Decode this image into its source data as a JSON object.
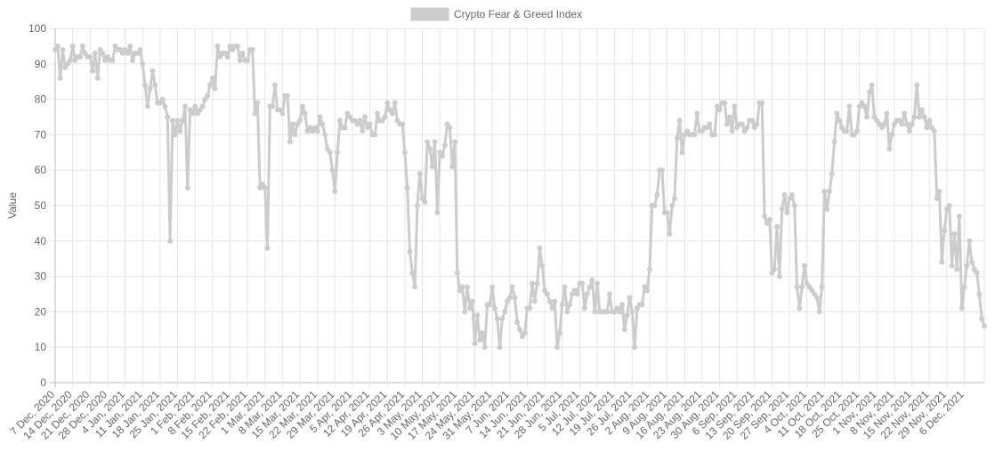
{
  "chart_data": {
    "type": "line",
    "title": "",
    "ylabel": "Value",
    "xlabel": "",
    "ylim": [
      0,
      100
    ],
    "yticks": [
      0,
      10,
      20,
      30,
      40,
      50,
      60,
      70,
      80,
      90,
      100
    ],
    "grid": true,
    "legend_position": "top-center",
    "x_start": "7 Dec, 2020",
    "x_end": "6 Dec, 2021",
    "x_tick_labels": [
      "7 Dec, 2020",
      "14 Dec, 2020",
      "21 Dec, 2020",
      "28 Dec, 2020",
      "4 Jan, 2021",
      "11 Jan, 2021",
      "18 Jan, 2021",
      "25 Jan, 2021",
      "1 Feb, 2021",
      "8 Feb, 2021",
      "15 Feb, 2021",
      "22 Feb, 2021",
      "1 Mar, 2021",
      "8 Mar, 2021",
      "15 Mar, 2021",
      "22 Mar, 2021",
      "29 Mar, 2021",
      "5 Apr, 2021",
      "12 Apr, 2021",
      "19 Apr, 2021",
      "26 Apr, 2021",
      "3 May, 2021",
      "10 May, 2021",
      "17 May, 2021",
      "24 May, 2021",
      "31 May, 2021",
      "7 Jun, 2021",
      "14 Jun, 2021",
      "21 Jun, 2021",
      "28 Jun, 2021",
      "5 Jul, 2021",
      "12 Jul, 2021",
      "19 Jul, 2021",
      "26 Jul, 2021",
      "2 Aug, 2021",
      "9 Aug, 2021",
      "16 Aug, 2021",
      "23 Aug, 2021",
      "30 Aug, 2021",
      "6 Sep, 2021",
      "13 Sep, 2021",
      "20 Sep, 2021",
      "27 Sep, 2021",
      "4 Oct, 2021",
      "11 Oct, 2021",
      "18 Oct, 2021",
      "25 Oct, 2021",
      "1 Nov, 2021",
      "8 Nov, 2021",
      "15 Nov, 2021",
      "22 Nov, 2021",
      "29 Nov, 2021",
      "6 Dec, 2021"
    ],
    "series": [
      {
        "name": "Crypto Fear & Greed Index",
        "color": "#cccccc",
        "values": [
          94,
          95,
          86,
          94,
          89,
          90,
          91,
          95,
          91,
          92,
          92,
          95,
          93,
          92,
          92,
          88,
          93,
          86,
          94,
          93,
          91,
          92,
          91,
          91,
          95,
          94,
          94,
          93,
          94,
          93,
          95,
          91,
          93,
          93,
          94,
          90,
          84,
          78,
          83,
          88,
          84,
          79,
          79,
          80,
          78,
          75,
          40,
          74,
          70,
          74,
          71,
          74,
          78,
          55,
          77,
          76,
          78,
          76,
          77,
          78,
          80,
          81,
          84,
          86,
          83,
          95,
          92,
          93,
          93,
          92,
          95,
          94,
          95,
          95,
          91,
          93,
          91,
          91,
          94,
          94,
          76,
          79,
          55,
          56,
          55,
          38,
          78,
          78,
          84,
          77,
          77,
          76,
          81,
          81,
          68,
          73,
          70,
          73,
          74,
          78,
          76,
          71,
          72,
          71,
          72,
          71,
          75,
          73,
          70,
          66,
          65,
          60,
          54,
          65,
          74,
          72,
          72,
          76,
          75,
          74,
          74,
          73,
          74,
          71,
          75,
          72,
          73,
          70,
          70,
          76,
          74,
          74,
          75,
          79,
          77,
          76,
          79,
          74,
          73,
          73,
          65,
          55,
          37,
          31,
          27,
          50,
          59,
          52,
          51,
          68,
          66,
          61,
          68,
          48,
          65,
          64,
          67,
          73,
          72,
          61,
          68,
          31,
          26,
          27,
          20,
          27,
          21,
          23,
          11,
          19,
          12,
          14,
          10,
          22,
          22,
          27,
          21,
          18,
          10,
          18,
          20,
          23,
          24,
          27,
          24,
          17,
          15,
          13,
          14,
          21,
          21,
          28,
          23,
          28,
          38,
          33,
          26,
          25,
          23,
          21,
          23,
          10,
          14,
          22,
          27,
          20,
          22,
          25,
          26,
          25,
          28,
          28,
          21,
          25,
          27,
          29,
          20,
          28,
          20,
          20,
          20,
          20,
          25,
          20,
          20,
          21,
          20,
          22,
          15,
          19,
          24,
          20,
          10,
          21,
          22,
          22,
          27,
          26,
          32,
          50,
          50,
          53,
          60,
          60,
          48,
          48,
          42,
          50,
          52,
          69,
          74,
          65,
          70,
          71,
          70,
          70,
          70,
          76,
          71,
          71,
          72,
          72,
          73,
          70,
          70,
          78,
          77,
          79,
          79,
          73,
          75,
          71,
          78,
          72,
          73,
          73,
          71,
          72,
          74,
          74,
          72,
          73,
          79,
          79,
          47,
          45,
          46,
          31,
          32,
          44,
          30,
          49,
          53,
          48,
          52,
          53,
          50,
          27,
          21,
          27,
          33,
          28,
          27,
          26,
          25,
          24,
          20,
          27,
          54,
          49,
          54,
          59,
          68,
          76,
          74,
          72,
          71,
          71,
          78,
          70,
          70,
          71,
          78,
          79,
          78,
          75,
          82,
          84,
          75,
          74,
          73,
          72,
          73,
          76,
          66,
          70,
          73,
          74,
          74,
          73,
          76,
          73,
          71,
          73,
          75,
          84,
          75,
          77,
          75,
          72,
          74,
          72,
          71,
          52,
          54,
          34,
          43,
          49,
          50,
          33,
          42,
          32,
          47,
          21,
          27,
          33,
          40,
          34,
          32,
          31,
          25,
          18,
          16
        ]
      }
    ]
  }
}
